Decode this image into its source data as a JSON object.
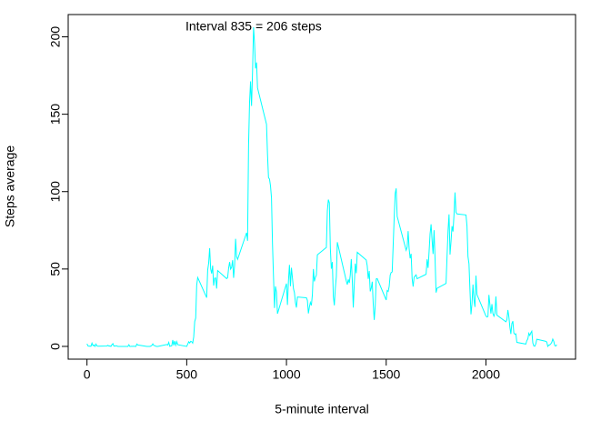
{
  "chart_data": {
    "type": "line",
    "annotation": "Interval 835 = 206 steps",
    "xlabel": "5-minute interval",
    "ylabel": "Steps average",
    "xlim": [
      -94.2,
      2449.2
    ],
    "ylim": [
      -8.25,
      214.4
    ],
    "xticks": [
      0,
      500,
      1000,
      1500,
      2000
    ],
    "yticks": [
      0,
      50,
      100,
      150,
      200
    ],
    "series": [
      {
        "color": "#00ffff",
        "x": [
          0,
          5,
          10,
          15,
          20,
          25,
          30,
          35,
          40,
          45,
          50,
          55,
          100,
          105,
          110,
          115,
          120,
          125,
          130,
          135,
          140,
          145,
          150,
          155,
          200,
          205,
          210,
          215,
          220,
          225,
          230,
          235,
          240,
          245,
          250,
          255,
          300,
          305,
          310,
          315,
          320,
          325,
          330,
          335,
          340,
          345,
          350,
          355,
          400,
          405,
          410,
          415,
          420,
          425,
          430,
          435,
          440,
          445,
          450,
          455,
          500,
          505,
          510,
          515,
          520,
          525,
          530,
          535,
          540,
          545,
          550,
          555,
          600,
          605,
          610,
          615,
          620,
          625,
          630,
          635,
          640,
          645,
          650,
          655,
          700,
          705,
          710,
          715,
          720,
          725,
          730,
          735,
          740,
          745,
          750,
          755,
          800,
          805,
          810,
          815,
          820,
          825,
          830,
          835,
          840,
          845,
          850,
          855,
          900,
          905,
          910,
          915,
          920,
          925,
          930,
          935,
          940,
          945,
          950,
          955,
          1000,
          1005,
          1010,
          1015,
          1020,
          1025,
          1030,
          1035,
          1040,
          1045,
          1050,
          1055,
          1100,
          1105,
          1110,
          1115,
          1120,
          1125,
          1130,
          1135,
          1140,
          1145,
          1150,
          1155,
          1200,
          1205,
          1210,
          1215,
          1220,
          1225,
          1230,
          1235,
          1240,
          1245,
          1250,
          1255,
          1300,
          1305,
          1310,
          1315,
          1320,
          1325,
          1330,
          1335,
          1340,
          1345,
          1350,
          1355,
          1400,
          1405,
          1410,
          1415,
          1420,
          1425,
          1430,
          1435,
          1440,
          1445,
          1450,
          1455,
          1500,
          1505,
          1510,
          1515,
          1520,
          1525,
          1530,
          1535,
          1540,
          1545,
          1550,
          1555,
          1600,
          1605,
          1610,
          1615,
          1620,
          1625,
          1630,
          1635,
          1640,
          1645,
          1650,
          1655,
          1700,
          1705,
          1710,
          1715,
          1720,
          1725,
          1730,
          1735,
          1740,
          1745,
          1750,
          1755,
          1800,
          1805,
          1810,
          1815,
          1820,
          1825,
          1830,
          1835,
          1840,
          1845,
          1850,
          1855,
          1900,
          1905,
          1910,
          1915,
          1920,
          1925,
          1930,
          1935,
          1940,
          1945,
          1950,
          1955,
          2000,
          2005,
          2010,
          2015,
          2020,
          2025,
          2030,
          2035,
          2040,
          2045,
          2050,
          2055,
          2100,
          2105,
          2110,
          2115,
          2120,
          2125,
          2130,
          2135,
          2140,
          2145,
          2150,
          2155,
          2200,
          2205,
          2210,
          2215,
          2220,
          2225,
          2230,
          2235,
          2240,
          2245,
          2250,
          2255,
          2300,
          2305,
          2310,
          2315,
          2320,
          2325,
          2330,
          2335,
          2340,
          2345,
          2350,
          2355
        ],
        "values": [
          1.7,
          0.3,
          0.1,
          0.2,
          0.1,
          2.1,
          0.5,
          0.9,
          0,
          1.5,
          0.3,
          0.1,
          0.3,
          0.7,
          0.2,
          0.3,
          0,
          1.1,
          1.8,
          0.2,
          0.2,
          0.4,
          0.3,
          0,
          0,
          0,
          1.1,
          0,
          0,
          0.1,
          0,
          0.2,
          0,
          0,
          1.5,
          0.9,
          0,
          0,
          0,
          0,
          0.2,
          0.6,
          1.6,
          0.6,
          0.5,
          0.1,
          0,
          0,
          1.2,
          0.9,
          2.6,
          0,
          0.3,
          0.4,
          4.1,
          0.7,
          3.5,
          0.8,
          3.1,
          1.1,
          0,
          1.5,
          3,
          2.2,
          3.3,
          3,
          2.1,
          6.1,
          16,
          18.3,
          39.5,
          44.5,
          31.5,
          49.3,
          53.8,
          63.5,
          50,
          47.1,
          52.2,
          39.3,
          44.1,
          44.2,
          37.4,
          49,
          43.8,
          44.4,
          50.5,
          54.5,
          49.9,
          51,
          55.7,
          44.3,
          52.3,
          69.5,
          58,
          56.2,
          73.4,
          68.2,
          129.4,
          157.5,
          171.2,
          155.4,
          177.3,
          206.2,
          195.9,
          179.6,
          183.4,
          167,
          143.5,
          124,
          109.1,
          108.1,
          103.7,
          96,
          66.2,
          45.2,
          24.8,
          38.8,
          35,
          21.1,
          40.6,
          26.8,
          42.4,
          52.7,
          38.9,
          50.8,
          44.3,
          37.4,
          34.7,
          28.3,
          25.1,
          31.9,
          31.4,
          29.7,
          21.3,
          25.5,
          28.4,
          26.5,
          33.4,
          50,
          42,
          44.6,
          46,
          59.2,
          63.9,
          87.7,
          94.8,
          92.8,
          63.4,
          50.2,
          54.5,
          32.4,
          26.5,
          37.7,
          45.1,
          67.3,
          42.3,
          39.9,
          43.3,
          41,
          46.2,
          56.4,
          42.8,
          25.1,
          40,
          53.5,
          47.3,
          60.8,
          55.8,
          52,
          43.6,
          48.7,
          35.5,
          37.6,
          41.8,
          27.5,
          17.1,
          26.1,
          43.6,
          43.8,
          30,
          36.1,
          35.5,
          38.8,
          46,
          47.8,
          48.1,
          65.3,
          82.9,
          98.7,
          102.1,
          84,
          62.1,
          64.1,
          74.5,
          63.2,
          56.9,
          59.8,
          43.9,
          38.6,
          44.7,
          45.5,
          46.2,
          43.7,
          46.6,
          56.3,
          50.7,
          61.2,
          72.7,
          78.9,
          68.9,
          59.7,
          75.1,
          56.5,
          34.8,
          37.5,
          40.7,
          58,
          74.7,
          85.3,
          59.3,
          67.8,
          77.7,
          74.2,
          85.3,
          99.5,
          86.6,
          85.6,
          84.9,
          77.8,
          58,
          53.4,
          36.3,
          20.7,
          27.4,
          40,
          30.2,
          25.5,
          45.7,
          33.5,
          19.6,
          19,
          19.3,
          33.3,
          26.8,
          21.2,
          27.3,
          21.3,
          19.5,
          21.3,
          32.3,
          20.2,
          15.9,
          17.2,
          23.5,
          19.2,
          12.5,
          8,
          14.7,
          16.3,
          8.7,
          7.8,
          8.1,
          2.6,
          1.5,
          3.7,
          4.8,
          8.5,
          7.1,
          8.7,
          9.8,
          2.2,
          0.3,
          0.1,
          1.6,
          4.6,
          3.3,
          2.8,
          0,
          0.8,
          1,
          1.6,
          2.6,
          4.7,
          3.3,
          0.6,
          0.2,
          1.1
        ]
      }
    ]
  }
}
